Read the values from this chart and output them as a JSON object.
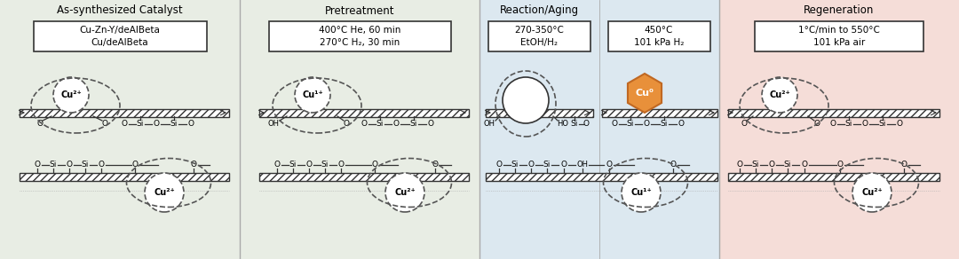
{
  "bg1": "#e8ede4",
  "bg2": "#e8ede4",
  "bg3": "#dce8f0",
  "bg4": "#f5ddd8",
  "orange": "#e8903a",
  "orange_edge": "#c06822",
  "line": "#333333",
  "dashed": "#555555",
  "white": "#ffffff",
  "title1": "As-synthesized Catalyst",
  "title2": "Pretreatment",
  "title3": "Reaction/Aging",
  "title4": "Regeneration",
  "box1": "Cu-Zn-Y/deAlBeta\nCu/deAlBeta",
  "box2": "400°C He, 60 min\n270°C H₂, 30 min",
  "box3": "270-350°C\nEtOH/H₂",
  "box4": "450°C\n101 kPa H₂",
  "box5": "1°C/min to 550°C\n101 kPa air"
}
